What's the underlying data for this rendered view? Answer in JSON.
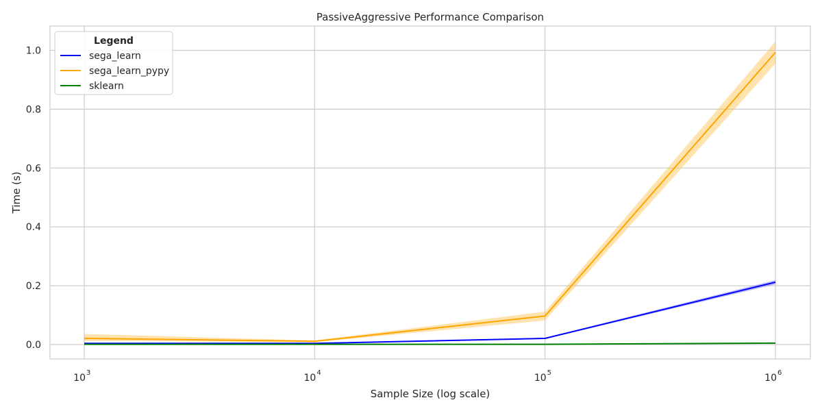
{
  "chart_data": {
    "type": "line",
    "title": "PassiveAggressive Performance Comparison",
    "xlabel": "Sample Size (log scale)",
    "ylabel": "Time (s)",
    "xscale": "log",
    "x": [
      1000,
      10000,
      100000,
      1000000
    ],
    "x_ticks": [
      {
        "value": 1000,
        "base": "10",
        "exp": "3"
      },
      {
        "value": 10000,
        "base": "10",
        "exp": "4"
      },
      {
        "value": 100000,
        "base": "10",
        "exp": "5"
      },
      {
        "value": 1000000,
        "base": "10",
        "exp": "6"
      }
    ],
    "y_ticks": [
      "0.0",
      "0.2",
      "0.4",
      "0.6",
      "0.8",
      "1.0"
    ],
    "ylim": [
      -0.05,
      1.08
    ],
    "grid": true,
    "legend": {
      "title": "Legend",
      "placement": "top-left"
    },
    "series": [
      {
        "name": "sega_learn",
        "color": "#0000ff",
        "band_color": "#6060ff",
        "values": [
          0.004,
          0.004,
          0.021,
          0.212
        ],
        "lower": [
          0.003,
          0.003,
          0.019,
          0.205
        ],
        "upper": [
          0.005,
          0.005,
          0.023,
          0.219
        ]
      },
      {
        "name": "sega_learn_pypy",
        "color": "#ffa500",
        "band_color": "#ffc04d",
        "values": [
          0.021,
          0.011,
          0.097,
          0.993
        ],
        "lower": [
          0.012,
          0.008,
          0.082,
          0.955
        ],
        "upper": [
          0.036,
          0.014,
          0.112,
          1.03
        ]
      },
      {
        "name": "sklearn",
        "color": "#008000",
        "band_color": "#4da64d",
        "values": [
          0.001,
          0.001,
          0.001,
          0.005
        ],
        "lower": [
          0.0005,
          0.0005,
          0.0005,
          0.004
        ],
        "upper": [
          0.0015,
          0.0015,
          0.0015,
          0.006
        ]
      }
    ]
  }
}
